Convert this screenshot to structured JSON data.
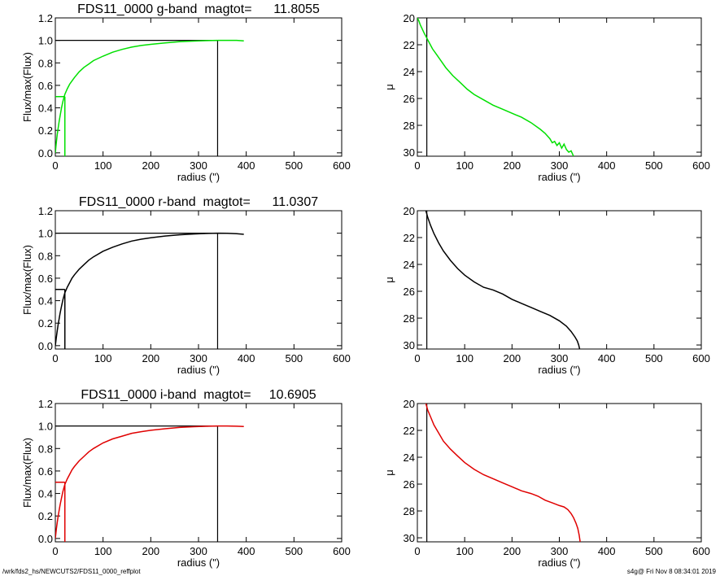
{
  "footer": {
    "left": "/wrk/fds2_hs/NEWCUTS2/FDS11_0000_reffplot",
    "right": "s4g@  Fri Nov  8 08:34:01 2019"
  },
  "chart_data": [
    {
      "type": "line",
      "panel": "g-band growth curve",
      "title": "FDS11_0000 g-band  magtot=      11.8055",
      "xlabel": "radius (\")",
      "ylabel": "Flux/max(Flux)",
      "xlim": [
        0,
        600
      ],
      "ylim": [
        -0.03,
        1.2
      ],
      "xticks": [
        0,
        100,
        200,
        300,
        400,
        500,
        600
      ],
      "yticks": [
        "0.0",
        "0.2",
        "0.4",
        "0.6",
        "0.8",
        "1.0",
        "1.2"
      ],
      "color": "#00e000",
      "series": [
        {
          "x": [
            0,
            2,
            4,
            6,
            8,
            10,
            13,
            16,
            20,
            25,
            30,
            35,
            40,
            50,
            60,
            70,
            80,
            100,
            120,
            140,
            160,
            180,
            200,
            230,
            260,
            290,
            320,
            340,
            360,
            380,
            395
          ],
          "y": [
            0,
            0.09,
            0.16,
            0.22,
            0.28,
            0.33,
            0.4,
            0.46,
            0.52,
            0.57,
            0.61,
            0.64,
            0.67,
            0.72,
            0.76,
            0.79,
            0.82,
            0.86,
            0.895,
            0.92,
            0.94,
            0.955,
            0.965,
            0.978,
            0.988,
            0.994,
            0.998,
            1.0,
            1.0,
            1.0,
            0.995
          ]
        }
      ],
      "half_light_radius": 20,
      "max_radius": 340,
      "flux_at_max": 1.0
    },
    {
      "type": "line",
      "panel": "g-band surface brightness",
      "title": "",
      "xlabel": "radius (\")",
      "ylabel": "μ",
      "xlim": [
        0,
        600
      ],
      "ylim": [
        30.3,
        20
      ],
      "xticks": [
        0,
        100,
        200,
        300,
        400,
        500,
        600
      ],
      "yticks": [
        "20",
        "22",
        "24",
        "26",
        "28",
        "30"
      ],
      "color": "#00e000",
      "series": [
        {
          "x": [
            0,
            3,
            6,
            10,
            14,
            20,
            26,
            32,
            40,
            50,
            60,
            75,
            90,
            105,
            120,
            140,
            160,
            180,
            200,
            220,
            240,
            260,
            270,
            280,
            285,
            290,
            295,
            300,
            305,
            310,
            315,
            320,
            325,
            330
          ],
          "y": [
            20.0,
            20.2,
            20.5,
            20.8,
            21.1,
            21.5,
            21.9,
            22.3,
            22.7,
            23.2,
            23.7,
            24.3,
            24.8,
            25.3,
            25.7,
            26.1,
            26.5,
            26.8,
            27.1,
            27.4,
            27.8,
            28.3,
            28.6,
            29.0,
            29.3,
            29.2,
            29.5,
            29.3,
            29.7,
            29.4,
            29.8,
            30.0,
            29.9,
            30.3
          ]
        }
      ],
      "max_radius": 20
    },
    {
      "type": "line",
      "panel": "r-band growth curve",
      "title": "FDS11_0000 r-band  magtot=      11.0307",
      "xlabel": "radius (\")",
      "ylabel": "Flux/max(Flux)",
      "xlim": [
        0,
        600
      ],
      "ylim": [
        -0.03,
        1.2
      ],
      "xticks": [
        0,
        100,
        200,
        300,
        400,
        500,
        600
      ],
      "yticks": [
        "0.0",
        "0.2",
        "0.4",
        "0.6",
        "0.8",
        "1.0",
        "1.2"
      ],
      "color": "#000000",
      "series": [
        {
          "x": [
            0,
            2,
            4,
            6,
            8,
            10,
            13,
            16,
            20,
            25,
            30,
            35,
            40,
            50,
            60,
            70,
            80,
            100,
            120,
            140,
            160,
            180,
            200,
            230,
            260,
            290,
            320,
            340,
            360,
            380,
            395
          ],
          "y": [
            0,
            0.07,
            0.13,
            0.19,
            0.24,
            0.29,
            0.35,
            0.41,
            0.47,
            0.52,
            0.56,
            0.6,
            0.63,
            0.68,
            0.72,
            0.76,
            0.79,
            0.84,
            0.875,
            0.905,
            0.93,
            0.947,
            0.96,
            0.975,
            0.986,
            0.993,
            0.998,
            1.0,
            0.999,
            0.995,
            0.99
          ]
        }
      ],
      "half_light_radius": 20,
      "max_radius": 340,
      "flux_at_max": 1.0
    },
    {
      "type": "line",
      "panel": "r-band surface brightness",
      "title": "",
      "xlabel": "radius (\")",
      "ylabel": "μ",
      "xlim": [
        0,
        600
      ],
      "ylim": [
        30.3,
        20
      ],
      "xticks": [
        0,
        100,
        200,
        300,
        400,
        500,
        600
      ],
      "yticks": [
        "20",
        "22",
        "24",
        "26",
        "28",
        "30"
      ],
      "color": "#000000",
      "series": [
        {
          "x": [
            18,
            22,
            28,
            35,
            45,
            55,
            70,
            85,
            100,
            120,
            140,
            160,
            180,
            200,
            220,
            240,
            260,
            280,
            300,
            315,
            325,
            333,
            338,
            341,
            343
          ],
          "y": [
            20.0,
            20.5,
            21.1,
            21.7,
            22.4,
            23.0,
            23.7,
            24.3,
            24.8,
            25.3,
            25.7,
            25.9,
            26.2,
            26.6,
            26.9,
            27.2,
            27.5,
            27.8,
            28.2,
            28.6,
            29.0,
            29.4,
            29.7,
            30.0,
            30.3
          ]
        }
      ],
      "max_radius": 20
    },
    {
      "type": "line",
      "panel": "i-band growth curve",
      "title": "FDS11_0000 i-band  magtot=     10.6905",
      "xlabel": "radius (\")",
      "ylabel": "Flux/max(Flux)",
      "xlim": [
        0,
        600
      ],
      "ylim": [
        -0.03,
        1.2
      ],
      "xticks": [
        0,
        100,
        200,
        300,
        400,
        500,
        600
      ],
      "yticks": [
        "0.0",
        "0.2",
        "0.4",
        "0.6",
        "0.8",
        "1.0",
        "1.2"
      ],
      "color": "#e00000",
      "series": [
        {
          "x": [
            0,
            2,
            4,
            6,
            8,
            10,
            13,
            16,
            20,
            25,
            30,
            35,
            40,
            50,
            60,
            70,
            80,
            100,
            120,
            140,
            160,
            180,
            200,
            230,
            260,
            290,
            320,
            340,
            360,
            380,
            395
          ],
          "y": [
            0,
            0.08,
            0.14,
            0.2,
            0.25,
            0.3,
            0.36,
            0.42,
            0.48,
            0.53,
            0.57,
            0.61,
            0.64,
            0.69,
            0.73,
            0.77,
            0.8,
            0.85,
            0.885,
            0.91,
            0.935,
            0.95,
            0.962,
            0.976,
            0.987,
            0.994,
            0.998,
            1.0,
            1.0,
            0.998,
            0.995
          ]
        }
      ],
      "half_light_radius": 20,
      "max_radius": 340,
      "flux_at_max": 1.0
    },
    {
      "type": "line",
      "panel": "i-band surface brightness",
      "title": "",
      "xlabel": "radius (\")",
      "ylabel": "μ",
      "xlim": [
        0,
        600
      ],
      "ylim": [
        30.3,
        20
      ],
      "xticks": [
        0,
        100,
        200,
        300,
        400,
        500,
        600
      ],
      "yticks": [
        "20",
        "22",
        "24",
        "26",
        "28",
        "30"
      ],
      "color": "#e00000",
      "series": [
        {
          "x": [
            18,
            22,
            28,
            35,
            45,
            55,
            70,
            85,
            100,
            120,
            140,
            160,
            180,
            200,
            220,
            240,
            255,
            270,
            285,
            300,
            310,
            318,
            325,
            330,
            335,
            339,
            342,
            344
          ],
          "y": [
            20.0,
            20.5,
            21.0,
            21.6,
            22.2,
            22.8,
            23.4,
            23.9,
            24.4,
            24.9,
            25.3,
            25.6,
            25.9,
            26.2,
            26.5,
            26.7,
            26.9,
            27.2,
            27.4,
            27.6,
            27.7,
            27.9,
            28.2,
            28.5,
            28.9,
            29.3,
            29.8,
            30.3
          ]
        }
      ],
      "max_radius": 20
    }
  ]
}
